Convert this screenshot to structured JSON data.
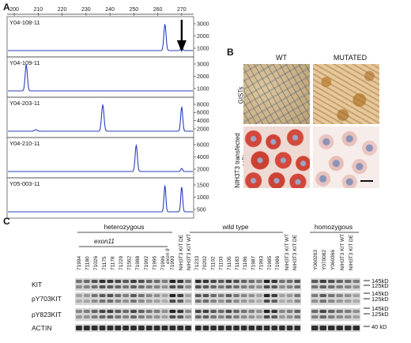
{
  "panel_a": {
    "letter": "A",
    "axis_ticks": [
      "200",
      "210",
      "220",
      "230",
      "240",
      "250",
      "260",
      "270"
    ],
    "traces": [
      {
        "label": "Y04-108-11",
        "y_ticks": [
          "3000",
          "2000",
          "1000"
        ],
        "peaks": [
          [
            263,
            1.0,
            1.2
          ],
          [
            270,
            0.15,
            1.0
          ]
        ],
        "arrow": true
      },
      {
        "label": "Y04-109-11",
        "y_ticks": [
          "3000",
          "2000",
          "1000"
        ],
        "peaks": [
          [
            205,
            1.0,
            1.2
          ]
        ],
        "arrow": false
      },
      {
        "label": "Y04-203-11",
        "y_ticks": [
          "8000",
          "6000",
          "4000",
          "2000"
        ],
        "peaks": [
          [
            209,
            0.06,
            1.5
          ],
          [
            237,
            1.0,
            1.3
          ],
          [
            270,
            0.92,
            1.1
          ]
        ],
        "arrow": false
      },
      {
        "label": "Y04-210-11",
        "y_ticks": [
          "6000",
          "4000",
          "2000"
        ],
        "peaks": [
          [
            251,
            1.0,
            1.2
          ],
          [
            270,
            0.12,
            1.0
          ]
        ],
        "arrow": false
      },
      {
        "label": "Y05-003-11",
        "y_ticks": [
          "1500",
          "1000",
          "500"
        ],
        "peaks": [
          [
            263,
            1.0,
            1.0
          ],
          [
            270,
            0.95,
            1.0
          ]
        ],
        "arrow": false
      }
    ]
  },
  "panel_b": {
    "letter": "B",
    "col_wt": "WT",
    "col_mut": "MUTATED",
    "row_gists": "GISTs",
    "row_nih": "NIH3T3 transfected cells"
  },
  "panel_c": {
    "letter": "C",
    "group_het": "heterozygous",
    "group_wt": "wild type",
    "group_hom": "homozygous",
    "sub_exon11": "exon11",
    "lanes_het": [
      "71994",
      "71180",
      "71026",
      "71175",
      "71178",
      "71229",
      "71562",
      "71988",
      "71992",
      "71995",
      "71996"
    ],
    "lane_exon9": "exon 9",
    "lane_exon9_id": "71990",
    "lanes_het_ctrl": [
      "NIH3T3 KIT DE",
      "NIH3T3 KIT WT"
    ],
    "lanes_wt": [
      "71233",
      "70202",
      "71102",
      "71103",
      "71105",
      "71183",
      "71186",
      "71987",
      "71993",
      "71985",
      "71986"
    ],
    "lanes_wt_ctrl": [
      "NIH3T3 KIT WT",
      "NIH3T3 KIT DE"
    ],
    "lanes_hom": [
      "Y060263",
      "Y070082",
      "Y060366"
    ],
    "lanes_hom_ctrl": [
      "NIH3T3 KIT WT",
      "NIH3T3 KIT DE"
    ],
    "rows": [
      "KIT",
      "pY703KIT",
      "pY823KIT",
      "ACTIN"
    ],
    "mw": [
      "145kD",
      "125kD",
      "145kD",
      "125kD",
      "145kD",
      "125kD",
      "40 kD"
    ]
  }
}
